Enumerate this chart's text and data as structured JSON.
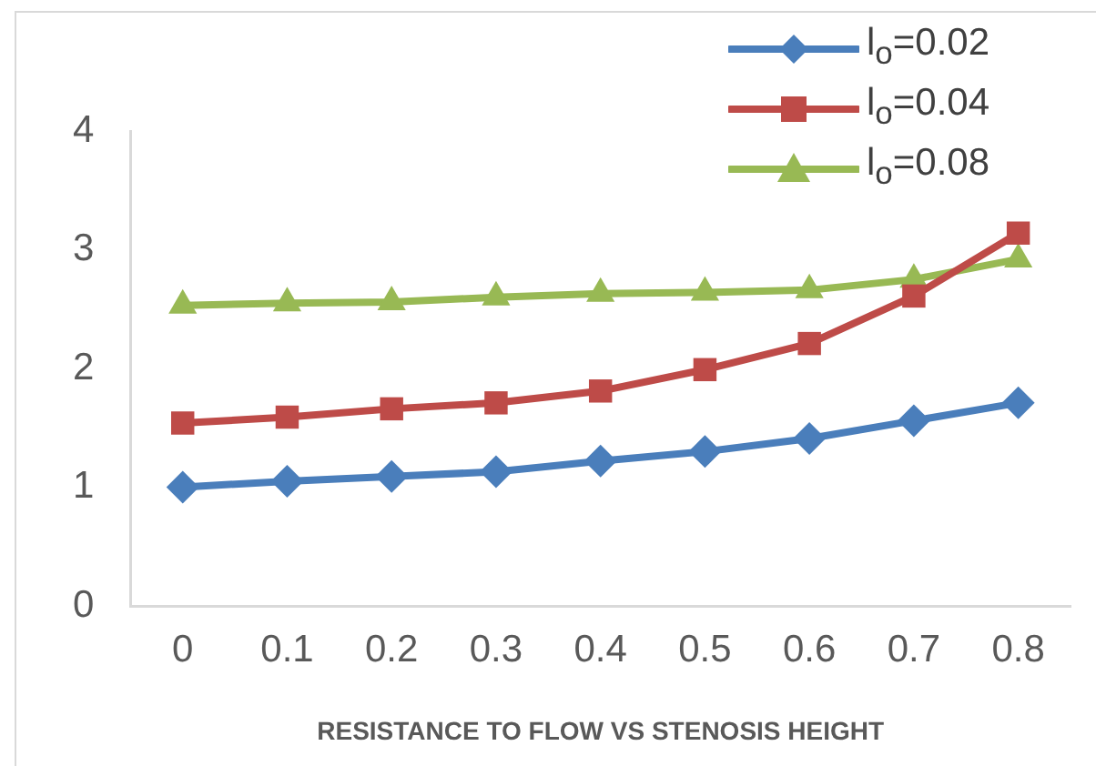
{
  "chart_data": {
    "type": "line",
    "xlabel": "RESISTANCE TO FLOW VS STENOSIS HEIGHT",
    "categories": [
      "0",
      "0.1",
      "0.2",
      "0.3",
      "0.4",
      "0.5",
      "0.6",
      "0.7",
      "0.8"
    ],
    "series": [
      {
        "name": "l$_{o}$=0.02",
        "color": "#4a7ebb",
        "marker": "diamond",
        "values": [
          1.0,
          1.05,
          1.09,
          1.13,
          1.22,
          1.3,
          1.41,
          1.56,
          1.71
        ]
      },
      {
        "name": "l$_{o}$=0.04",
        "color": "#be4b48",
        "marker": "square",
        "values": [
          1.54,
          1.59,
          1.66,
          1.71,
          1.81,
          1.99,
          2.21,
          2.61,
          3.14
        ]
      },
      {
        "name": "l$_{o}$=0.08",
        "color": "#98b954",
        "marker": "triangle",
        "values": [
          2.53,
          2.55,
          2.56,
          2.6,
          2.63,
          2.64,
          2.66,
          2.75,
          2.92
        ]
      }
    ],
    "ylim": [
      0,
      4
    ],
    "yticks": [
      0,
      1,
      2,
      3,
      4
    ],
    "grid": false,
    "legend": "top right",
    "line_style": "solid"
  }
}
